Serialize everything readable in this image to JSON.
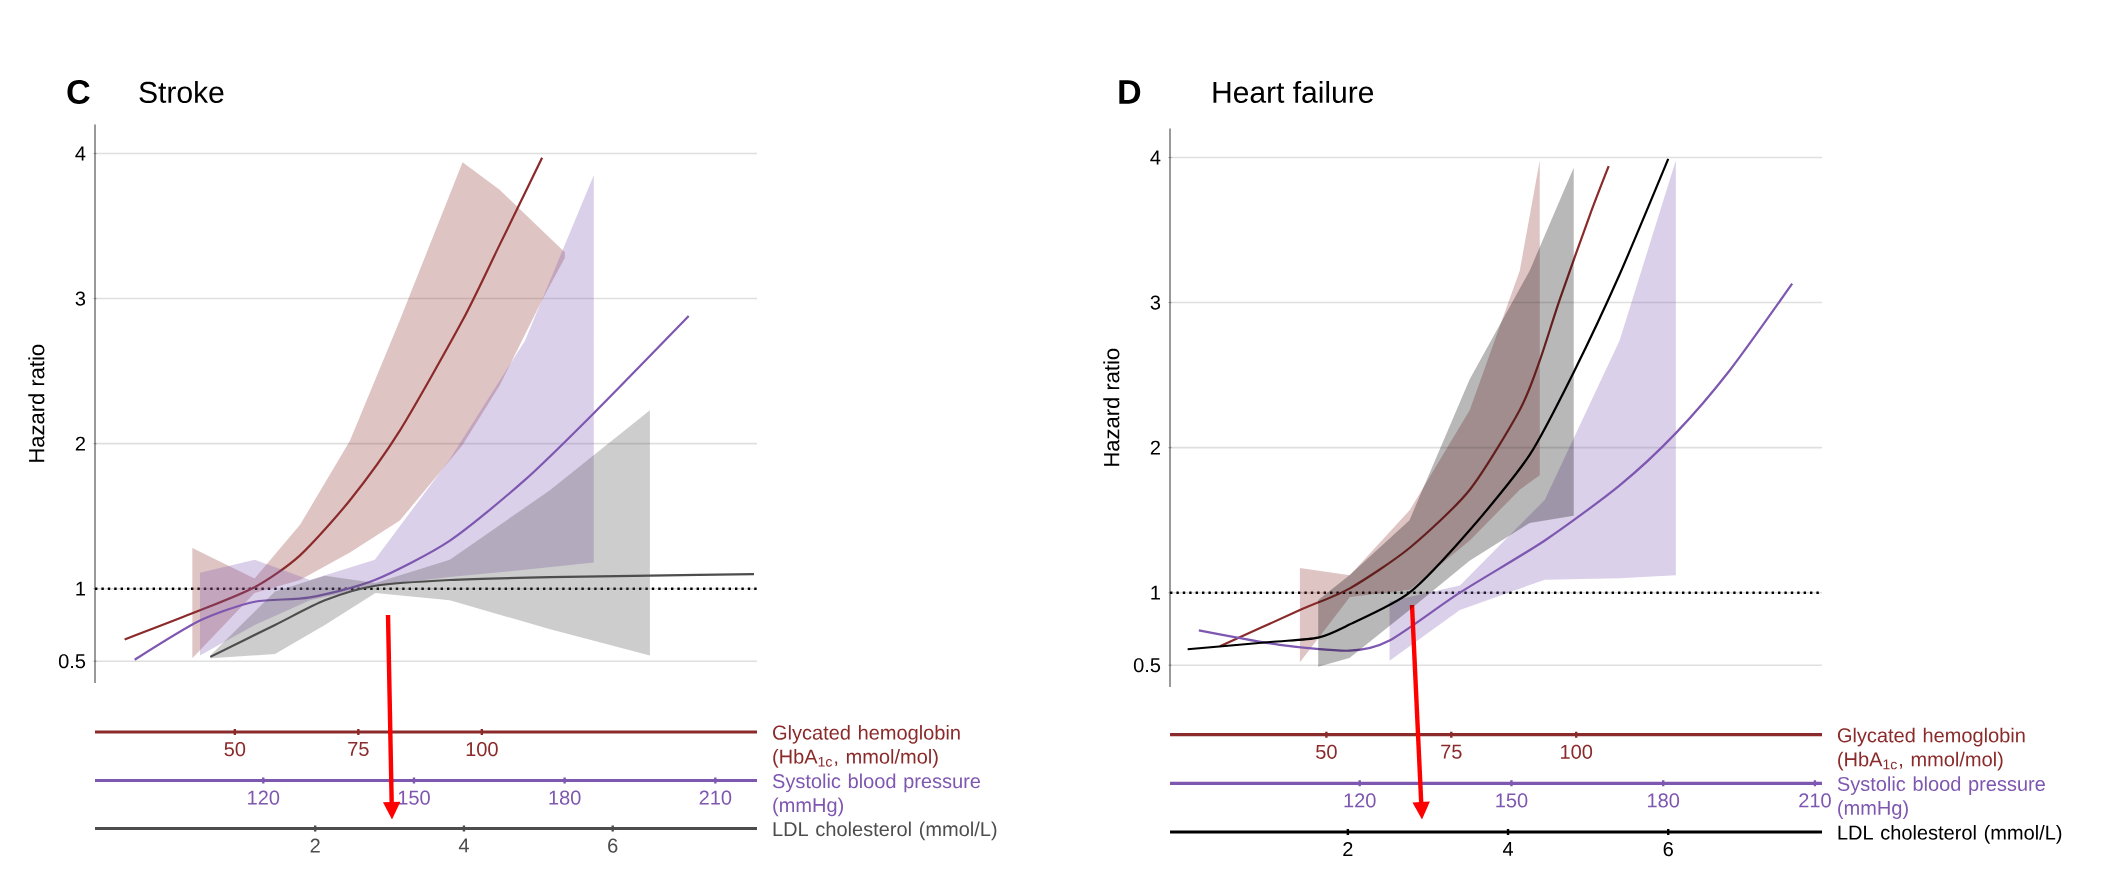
{
  "chart_data": [
    {
      "type": "line",
      "title": "Stroke",
      "annotations": [
        "C"
      ],
      "ylabel": "Hazard ratio",
      "xlabel": "Glycated hemoglobin (HbA$_{1c}$, mmol/mol)",
      "x2label": "Systolic blood pressure (mmHg)",
      "xlim": [
        21.7,
        155.7
      ],
      "xticks": [
        50,
        75,
        100
      ],
      "x2lim": [
        86.5,
        218.3
      ],
      "x2ticks": [
        120,
        150,
        180,
        210
      ],
      "ylim": [
        0.35,
        4.2
      ],
      "yticks": [
        0.5,
        1,
        2,
        3,
        4
      ],
      "grid": "y",
      "ref_lines": [
        {
          "axis": "y",
          "value": 1,
          "line_style": "dotted",
          "color": "#000000"
        }
      ],
      "series": [
        {
          "color": "#8b2a2a",
          "x": [
            27.7,
            41.4,
            54.0,
            63.2,
            73.3,
            83.4,
            96.1,
            103.6,
            112.2,
            116.8
          ],
          "values": [
            0.65,
            0.83,
            1.01,
            1.23,
            1.61,
            2.09,
            2.85,
            3.37,
            3.97,
            null
          ],
          "lower": [
            null,
            0.52,
            0.97,
            1.06,
            1.25,
            1.47,
            1.99,
            2.4,
            2.99,
            3.28
          ],
          "upper": [
            null,
            1.28,
            1.07,
            1.44,
            2.02,
            2.85,
            3.94,
            3.75,
            3.47,
            3.32
          ]
        },
        {
          "color": "#7e57b0",
          "axis": "x2",
          "x": [
            94.4,
            107.4,
            118.3,
            129.3,
            142.2,
            157.1,
            172.1,
            185.8,
            204.7
          ],
          "values": [
            0.51,
            0.78,
            0.91,
            0.94,
            1.06,
            1.33,
            1.75,
            2.21,
            2.88
          ],
          "lower": [
            null,
            0.54,
            0.75,
            0.92,
            1.02,
            1.08,
            1.13,
            1.18,
            null
          ],
          "upper": [
            null,
            1.11,
            1.2,
            1.06,
            1.2,
            1.89,
            2.71,
            3.85,
            null
          ]
        }
      ]
    },
    {
      "type": "line",
      "xlabel": "LDL cholesterol (mmol/L)",
      "xlim": [
        -0.96,
        7.94
      ],
      "xticks": [
        2,
        4,
        6
      ],
      "ylim": [
        0.35,
        4.2
      ],
      "tick_labels": "x",
      "series": [
        {
          "color": "#4d4d4d",
          "x": [
            0.59,
            1.46,
            2.13,
            2.81,
            3.81,
            5.16,
            6.5,
            7.9
          ],
          "values": [
            0.53,
            0.75,
            0.92,
            1.02,
            1.06,
            1.08,
            1.09,
            1.1
          ],
          "lower": [
            0.52,
            0.55,
            0.75,
            0.97,
            0.92,
            0.72,
            0.54,
            null
          ],
          "upper": [
            0.54,
            0.98,
            1.09,
            1.04,
            1.2,
            1.68,
            2.23,
            null
          ]
        }
      ]
    },
    {
      "type": "line",
      "title": "Heart failure",
      "annotations": [
        "D"
      ],
      "ylabel": "Hazard ratio",
      "xlabel": "Glycated hemoglobin (HbA$_{1c}$, mmol/mol)",
      "x2label": "Systolic blood pressure (mmHg)",
      "xlim": [
        18.7,
        149.2
      ],
      "xticks": [
        50,
        75,
        100
      ],
      "x2lim": [
        82.5,
        211.4
      ],
      "x2ticks": [
        120,
        150,
        180,
        210
      ],
      "ylim": [
        0.35,
        4.2
      ],
      "yticks": [
        0.5,
        1,
        2,
        3,
        4
      ],
      "grid": "y",
      "ref_lines": [
        {
          "axis": "y",
          "value": 1,
          "line_style": "dotted",
          "color": "#000000"
        }
      ],
      "series": [
        {
          "color": "#8b2a2a",
          "x": [
            28.7,
            44.7,
            54.7,
            66.7,
            78.7,
            88.7,
            92.7,
            96.7,
            102.7,
            106.5
          ],
          "values": [
            0.63,
            0.88,
            1.03,
            1.31,
            1.71,
            2.26,
            2.6,
            3.02,
            3.6,
            3.94
          ],
          "lower": [
            null,
            0.52,
            0.97,
            1.02,
            1.36,
            1.71,
            1.81,
            null,
            null,
            null
          ],
          "upper": [
            null,
            1.17,
            1.12,
            1.57,
            2.26,
            3.22,
            3.98,
            null,
            null,
            null
          ]
        },
        {
          "color": "#7e57b0",
          "axis": "x2",
          "x": [
            88.2,
            104.2,
            118.0,
            125.9,
            139.8,
            156.6,
            171.4,
            182.5,
            193.1,
            205.5
          ],
          "values": [
            0.74,
            0.64,
            0.6,
            0.67,
            1.0,
            1.36,
            1.74,
            2.1,
            2.53,
            3.13
          ],
          "lower": [
            null,
            null,
            null,
            0.53,
            0.88,
            1.09,
            1.1,
            1.12,
            null,
            null
          ],
          "upper": [
            null,
            null,
            null,
            0.94,
            1.05,
            1.64,
            2.74,
            3.98,
            null,
            null
          ]
        }
      ]
    },
    {
      "type": "line",
      "xlabel": "LDL cholesterol (mmol/L)",
      "xlim": [
        -0.22,
        7.92
      ],
      "xticks": [
        2,
        4,
        6
      ],
      "ylim": [
        0.35,
        4.2
      ],
      "tick_labels": "x",
      "series": [
        {
          "color": "#000000",
          "x": [
            0.0,
            1.03,
            1.63,
            2.02,
            2.77,
            3.52,
            4.27,
            4.82,
            5.39,
            6.0
          ],
          "values": [
            0.61,
            0.66,
            0.69,
            0.78,
            1.0,
            1.43,
            1.95,
            2.52,
            3.19,
            3.99
          ],
          "lower": [
            null,
            null,
            0.49,
            0.55,
            0.88,
            1.22,
            1.48,
            1.53,
            null,
            null
          ],
          "upper": [
            null,
            null,
            0.95,
            1.12,
            1.5,
            2.47,
            3.22,
            3.93,
            null,
            null
          ]
        }
      ]
    }
  ]
}
